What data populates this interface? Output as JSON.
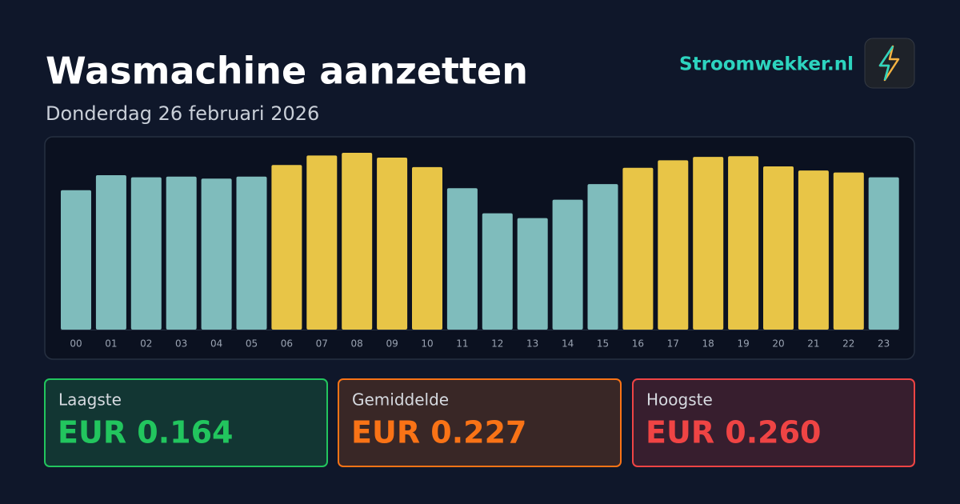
{
  "header": {
    "title": "Wasmachine aanzetten",
    "subtitle": "Donderdag 26 februari 2026",
    "brand": "Stroomwekker.nl"
  },
  "chart_data": {
    "type": "bar",
    "categories": [
      "00",
      "01",
      "02",
      "03",
      "04",
      "05",
      "06",
      "07",
      "08",
      "09",
      "10",
      "11",
      "12",
      "13",
      "14",
      "15",
      "16",
      "17",
      "18",
      "19",
      "20",
      "21",
      "22",
      "23"
    ],
    "values": [
      0.205,
      0.227,
      0.224,
      0.225,
      0.222,
      0.225,
      0.242,
      0.256,
      0.26,
      0.253,
      0.239,
      0.208,
      0.171,
      0.164,
      0.191,
      0.214,
      0.238,
      0.249,
      0.254,
      0.255,
      0.24,
      0.234,
      0.231,
      0.224
    ],
    "colors": [
      "#7fbcbc",
      "#7fbcbc",
      "#7fbcbc",
      "#7fbcbc",
      "#7fbcbc",
      "#7fbcbc",
      "#e8c547",
      "#e8c547",
      "#e8c547",
      "#e8c547",
      "#e8c547",
      "#7fbcbc",
      "#7fbcbc",
      "#7fbcbc",
      "#7fbcbc",
      "#7fbcbc",
      "#e8c547",
      "#e8c547",
      "#e8c547",
      "#e8c547",
      "#e8c547",
      "#e8c547",
      "#e8c547",
      "#7fbcbc"
    ],
    "ylim": [
      0,
      0.26
    ]
  },
  "stats": [
    {
      "label": "Laagste",
      "value": "EUR 0.164",
      "color": "#22c55e"
    },
    {
      "label": "Gemiddelde",
      "value": "EUR 0.227",
      "color": "#f97316"
    },
    {
      "label": "Hoogste",
      "value": "EUR 0.260",
      "color": "#ef4444"
    }
  ]
}
